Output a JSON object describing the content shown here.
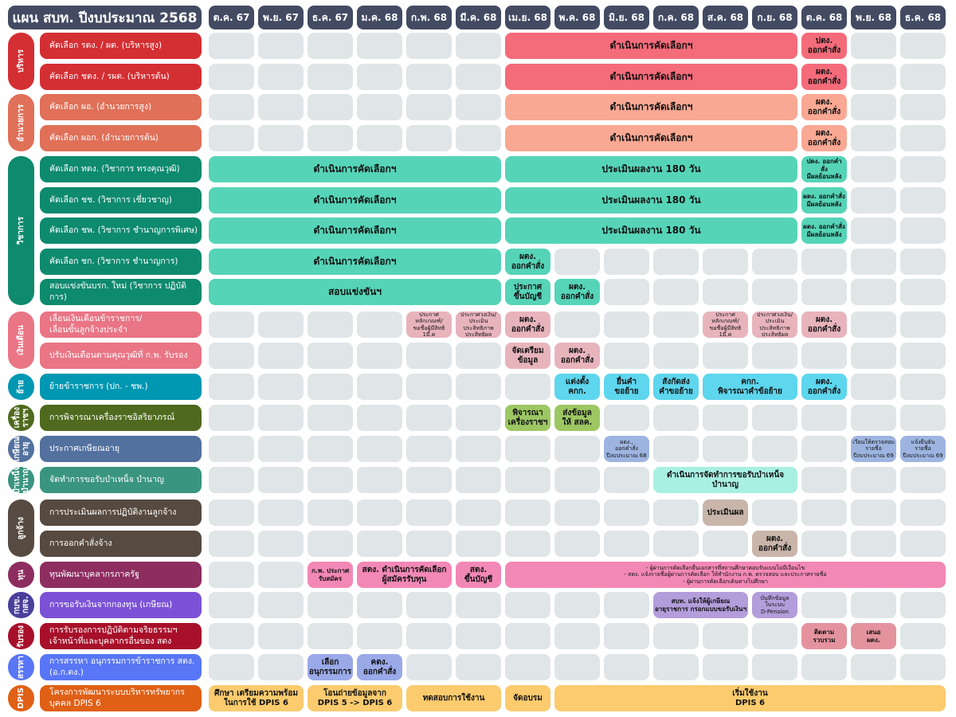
{
  "title": "แผน สบท. ปีงบประมาณ 2568",
  "months": [
    "ต.ค. 67",
    "พ.ย. 67",
    "ธ.ค. 67",
    "ม.ค. 68",
    "ก.พ. 68",
    "มี.ค. 68",
    "เม.ย. 68",
    "พ.ค. 68",
    "มิ.ย. 68",
    "ก.ค. 68",
    "ส.ค. 68",
    "ก.ย. 68",
    "ต.ค. 68",
    "พ.ย. 68",
    "ธ.ค. 68"
  ],
  "groups": [
    {
      "label": "บริหาร",
      "color": "#d42f33",
      "rows": [
        0,
        1
      ]
    },
    {
      "label": "อำนวยการ",
      "color": "#e07058",
      "rows": [
        2,
        3
      ]
    },
    {
      "label": "วิชาการ",
      "color": "#0e8a6f",
      "rows": [
        4,
        8
      ]
    },
    {
      "label": "เงินเดือน",
      "color": "#e97585",
      "rows": [
        9,
        10
      ]
    },
    {
      "label": "ย้าย",
      "color": "#0097b2",
      "rows": [
        11,
        11
      ]
    },
    {
      "label": "เครื่อง\nราชฯ",
      "color": "#4f6a1e",
      "rows": [
        12,
        12
      ]
    },
    {
      "label": "เกษียณ\nอายุ",
      "color": "#53719e",
      "rows": [
        13,
        13
      ]
    },
    {
      "label": "บำเหน็จ\nบำนาญ",
      "color": "#3a9580",
      "rows": [
        14,
        14
      ]
    },
    {
      "label": "ลูกจ้าง",
      "color": "#574a40",
      "rows": [
        15,
        16
      ]
    },
    {
      "label": "ทุน",
      "color": "#8e2d60",
      "rows": [
        17,
        17
      ]
    },
    {
      "label": "กบข.\nกสจ.",
      "color": "#4a3f9b",
      "rows": [
        18,
        18
      ]
    },
    {
      "label": "รับรอง",
      "color": "#a8102a",
      "rows": [
        19,
        19
      ]
    },
    {
      "label": "สรรหา",
      "color": "#5876f5",
      "rows": [
        20,
        20
      ]
    },
    {
      "label": "DPIS",
      "color": "#e06016",
      "rows": [
        21,
        21
      ]
    }
  ],
  "rows": [
    {
      "label": "คัดเลือก รตง. / ผต. (บริหารสูง)",
      "color": "#d42f33",
      "bars": [
        {
          "start": 6,
          "span": 6,
          "text": "ดำเนินการคัดเลือกฯ",
          "color": "#f46b7a",
          "size": "big"
        },
        {
          "start": 12,
          "span": 1,
          "text": "ปตง.\nออกคำสั่ง",
          "color": "#f46b7a"
        }
      ]
    },
    {
      "label": "คัดเลือก ชตง. / รผต. (บริหารต้น)",
      "color": "#d42f33",
      "bars": [
        {
          "start": 6,
          "span": 6,
          "text": "ดำเนินการคัดเลือกฯ",
          "color": "#f46b7a",
          "size": "big"
        },
        {
          "start": 12,
          "span": 1,
          "text": "ผตง.\nออกคำสั่ง",
          "color": "#f46b7a"
        }
      ]
    },
    {
      "label": "คัดเลือก ผอ. (อำนวยการสูง)",
      "color": "#e07058",
      "bars": [
        {
          "start": 6,
          "span": 6,
          "text": "ดำเนินการคัดเลือกฯ",
          "color": "#f9a893",
          "size": "big"
        },
        {
          "start": 12,
          "span": 1,
          "text": "ผตง.\nออกคำสั่ง",
          "color": "#f9a893"
        }
      ]
    },
    {
      "label": "คัดเลือก ผอก. (อำนวยการต้น)",
      "color": "#e07058",
      "bars": [
        {
          "start": 6,
          "span": 6,
          "text": "ดำเนินการคัดเลือกฯ",
          "color": "#f9a893",
          "size": "big"
        },
        {
          "start": 12,
          "span": 1,
          "text": "ผตง.\nออกคำสั่ง",
          "color": "#f9a893"
        }
      ]
    },
    {
      "label": "คัดเลือก ทตง. (วิชาการ ทรงคุณวุฒิ)",
      "color": "#0e8a6f",
      "bars": [
        {
          "start": 0,
          "span": 6,
          "text": "ดำเนินการคัดเลือกฯ",
          "color": "#56d4b8",
          "size": "big"
        },
        {
          "start": 6,
          "span": 6,
          "text": "ประเมินผลงาน 180 วัน",
          "color": "#56d4b8",
          "size": "big"
        },
        {
          "start": 12,
          "span": 1,
          "text": "ปตง. ออกคำสั่ง\nมีผลย้อนหลัง",
          "color": "#56d4b8",
          "size": "small"
        }
      ]
    },
    {
      "label": "คัดเลือก ชช. (วิชาการ เชี่ยวชาญ)",
      "color": "#0e8a6f",
      "bars": [
        {
          "start": 0,
          "span": 6,
          "text": "ดำเนินการคัดเลือกฯ",
          "color": "#56d4b8",
          "size": "big"
        },
        {
          "start": 6,
          "span": 6,
          "text": "ประเมินผลงาน 180 วัน",
          "color": "#56d4b8",
          "size": "big"
        },
        {
          "start": 12,
          "span": 1,
          "text": "ผตง. ออกคำสั่ง\nมีผลย้อนหลัง",
          "color": "#56d4b8",
          "size": "small"
        }
      ]
    },
    {
      "label": "คัดเลือก ชพ. (วิชาการ ชำนาญการพิเศษ)",
      "color": "#0e8a6f",
      "bars": [
        {
          "start": 0,
          "span": 6,
          "text": "ดำเนินการคัดเลือกฯ",
          "color": "#56d4b8",
          "size": "big"
        },
        {
          "start": 6,
          "span": 6,
          "text": "ประเมินผลงาน 180 วัน",
          "color": "#56d4b8",
          "size": "big"
        },
        {
          "start": 12,
          "span": 1,
          "text": "ผตง. ออกคำสั่ง\nมีผลย้อนหลัง",
          "color": "#56d4b8",
          "size": "small"
        }
      ]
    },
    {
      "label": "คัดเลือก ชก. (วิชาการ ชำนาญการ)",
      "color": "#0e8a6f",
      "bars": [
        {
          "start": 0,
          "span": 6,
          "text": "ดำเนินการคัดเลือกฯ",
          "color": "#56d4b8",
          "size": "big"
        },
        {
          "start": 6,
          "span": 1,
          "text": "ผตง.\nออกคำสั่ง",
          "color": "#56d4b8"
        }
      ]
    },
    {
      "label": "สอบแข่งขันบรก. ใหม่ (วิชาการ ปฏิบัติการ)",
      "color": "#0e8a6f",
      "bars": [
        {
          "start": 0,
          "span": 6,
          "text": "สอบแข่งขันฯ",
          "color": "#56d4b8",
          "size": "big"
        },
        {
          "start": 6,
          "span": 1,
          "text": "ประกาศ\nขึ้นบัญชี",
          "color": "#56d4b8"
        },
        {
          "start": 7,
          "span": 1,
          "text": "ผตง.\nออกคำสั่ง",
          "color": "#56d4b8"
        }
      ]
    },
    {
      "label": "เลื่อนเงินเดือนข้าราชการ/\nเลื่อนขั้นลูกจ้างประจำ",
      "color": "#e97585",
      "bars": [
        {
          "start": 4,
          "span": 1,
          "text": "ประกาศ\nหลักเกณฑ์/\nขอชื่อผู้มีสิทธิ 1มี.ค",
          "color": "#e8b4bc",
          "size": "tiny"
        },
        {
          "start": 5,
          "span": 1,
          "text": "ประกาศวงเงิน/\nประเมินประสิทธิภาพ\nประสิทธิผล",
          "color": "#e8b4bc",
          "size": "tiny"
        },
        {
          "start": 6,
          "span": 1,
          "text": "ผตง.\nออกคำสั่ง",
          "color": "#e8b4bc"
        },
        {
          "start": 10,
          "span": 1,
          "text": "ประกาศ\nหลักเกณฑ์/\nขอชื่อผู้มีสิทธิ 1มี.ค",
          "color": "#e8b4bc",
          "size": "tiny"
        },
        {
          "start": 11,
          "span": 1,
          "text": "ประกาศวงเงิน/\nประเมินประสิทธิภาพ\nประสิทธิผล",
          "color": "#e8b4bc",
          "size": "tiny"
        },
        {
          "start": 12,
          "span": 1,
          "text": "ผตง.\nออกคำสั่ง",
          "color": "#e8b4bc"
        }
      ]
    },
    {
      "label": "ปรับเงินเดือนตามคุณวุฒิที่ ก.พ. รับรอง",
      "color": "#e97585",
      "bars": [
        {
          "start": 6,
          "span": 1,
          "text": "จัดเตรียม\nข้อมูล",
          "color": "#e8b4bc"
        },
        {
          "start": 7,
          "span": 1,
          "text": "ผตง.\nออกคำสั่ง",
          "color": "#e8b4bc"
        }
      ]
    },
    {
      "label": "ย้ายข้าราชการ (ปก. - ชพ.)",
      "color": "#0097b2",
      "bars": [
        {
          "start": 7,
          "span": 1,
          "text": "แต่งตั้ง\nคกก.",
          "color": "#5dd6ee"
        },
        {
          "start": 8,
          "span": 1,
          "text": "ยื่นคำ\nขอย้าย",
          "color": "#5dd6ee"
        },
        {
          "start": 9,
          "span": 1,
          "text": "สังกัดส่ง\nคำขอย้าย",
          "color": "#5dd6ee"
        },
        {
          "start": 10,
          "span": 2,
          "text": "คกก.\nพิจารณาคำข้อย้าย",
          "color": "#5dd6ee"
        },
        {
          "start": 12,
          "span": 1,
          "text": "ผตง.\nออกคำสั่ง",
          "color": "#5dd6ee"
        }
      ]
    },
    {
      "label": "การพิจารณาเครื่องราชอิสริยาภรณ์",
      "color": "#4f6a1e",
      "bars": [
        {
          "start": 6,
          "span": 1,
          "text": "พิจารณา\nเครื่องราชฯ",
          "color": "#9dc763"
        },
        {
          "start": 7,
          "span": 1,
          "text": "ส่งข้อมูล\nให้ สลค.",
          "color": "#9dc763"
        }
      ]
    },
    {
      "label": "ประกาศเกษียณอายุ",
      "color": "#53719e",
      "bars": [
        {
          "start": 8,
          "span": 1,
          "text": "ผตง.,\nออกคำสั่ง\nปีงบประมาณ 68",
          "color": "#9db4e0",
          "size": "tiny"
        },
        {
          "start": 13,
          "span": 1,
          "text": "เวียนให้ตรวจสอบ\nรายชื่อ\nปีงบประมาณ 69",
          "color": "#9db4e0",
          "size": "tiny"
        },
        {
          "start": 14,
          "span": 1,
          "text": "แจ้งยืนยัน\nรายชื่อ\nปีงบประมาณ 69",
          "color": "#9db4e0",
          "size": "tiny"
        }
      ]
    },
    {
      "label": "จัดทำการขอรับบำเหน็จ บำนาญ",
      "color": "#3a9580",
      "bars": [
        {
          "start": 9,
          "span": 3,
          "text": "ดำเนินการจัดทำการขอรับบำเหน็จ บำนาญ",
          "color": "#a8f0e2"
        }
      ]
    },
    {
      "label": "การประเมินผลการปฏิบัติงานลูกจ้าง",
      "color": "#574a40",
      "bars": [
        {
          "start": 10,
          "span": 1,
          "text": "ประเมินผล",
          "color": "#c9b5aa"
        }
      ]
    },
    {
      "label": "การออกคำสั่งจ้าง",
      "color": "#574a40",
      "bars": [
        {
          "start": 11,
          "span": 1,
          "text": "ผตง.\nออกคำสั่ง",
          "color": "#c9b5aa"
        }
      ]
    },
    {
      "label": "ทุนพัฒนาบุคลากรภาครัฐ",
      "color": "#8e2d60",
      "bars": [
        {
          "start": 2,
          "span": 1,
          "text": "ก.พ. ประกาศ\nรับสมัคร",
          "color": "#f288b6",
          "size": "small"
        },
        {
          "start": 3,
          "span": 2,
          "text": "สตง. ดำเนินการคัดเลือก\nผู้สมัครรับทุน",
          "color": "#f288b6"
        },
        {
          "start": 5,
          "span": 1,
          "text": "สตง.\nขึ้นบัญชี",
          "color": "#f288b6"
        },
        {
          "start": 6,
          "span": 9,
          "text": "- ผู้ผ่านการคัดเลือกยื่นเอกสารที่สถานศึกษาตอบรับแบบไม่มีเงื่อนไข\n- สตง. แจ้งรายชื่อผู้ผ่านการคัดเลือก ให้สำนักงาน ก.พ. ตรวจสอบ และประกาศรายชื่อ\n- ผู้ผ่านการคัดเลือกเดินทางไปศึกษา",
          "color": "#f288b6",
          "size": "tiny"
        }
      ]
    },
    {
      "label": "การขอรับเงินจากกองทุน (เกษียณ)",
      "color": "#7b52d6",
      "bars": [
        {
          "start": 9,
          "span": 2,
          "text": "สบท. แจ้งให้ผู้เกษียณ\nอายุราชการ กรอกแบบขอรับเงินฯ",
          "color": "#b39ddb",
          "size": "small"
        },
        {
          "start": 11,
          "span": 1,
          "text": "บันทึกข้อมูล\nในระบบ\nD-Pension",
          "color": "#b39ddb",
          "size": "tiny"
        }
      ]
    },
    {
      "label": "การรับรองการปฏิบัติตามจริยธรรมฯ\nเจ้าหน้าที่และบุคลากรอื่นของ สตง",
      "color": "#a8102a",
      "bars": [
        {
          "start": 12,
          "span": 1,
          "text": "ติดตาม\nรวบรวม",
          "color": "#e4939e",
          "size": "small"
        },
        {
          "start": 13,
          "span": 1,
          "text": "เสนอ\nผตง.",
          "color": "#e4939e",
          "size": "small"
        }
      ]
    },
    {
      "label": "การสรรหา อนุกรรมการข้าราชการ สตง. (อ.ก.ตง.)",
      "color": "#5876f5",
      "bars": [
        {
          "start": 2,
          "span": 1,
          "text": "เลือก\nอนุกรรมการ",
          "color": "#9aa9e8"
        },
        {
          "start": 3,
          "span": 1,
          "text": "คตง.\nออกคำสั่ง",
          "color": "#9aa9e8"
        }
      ]
    },
    {
      "label": "โครงการพัฒนาระบบบริหารทรัพยากรบุคคล DPIS 6",
      "color": "#e06016",
      "bars": [
        {
          "start": 0,
          "span": 2,
          "text": "ศึกษา เตรียมความพร้อม\nในการใช้ DPIS 6",
          "color": "#fbcb6e"
        },
        {
          "start": 2,
          "span": 2,
          "text": "โอนถ่ายข้อมูลจาก\nDPIS 5 -> DPIS 6",
          "color": "#fbcb6e"
        },
        {
          "start": 4,
          "span": 2,
          "text": "ทดสอบการใช้งาน",
          "color": "#fbcb6e"
        },
        {
          "start": 6,
          "span": 1,
          "text": "จัดอบรม",
          "color": "#fbcb6e"
        },
        {
          "start": 7,
          "span": 8,
          "text": "เริ่มใช้งาน\nDPIS 6",
          "color": "#fbcb6e"
        }
      ]
    }
  ]
}
